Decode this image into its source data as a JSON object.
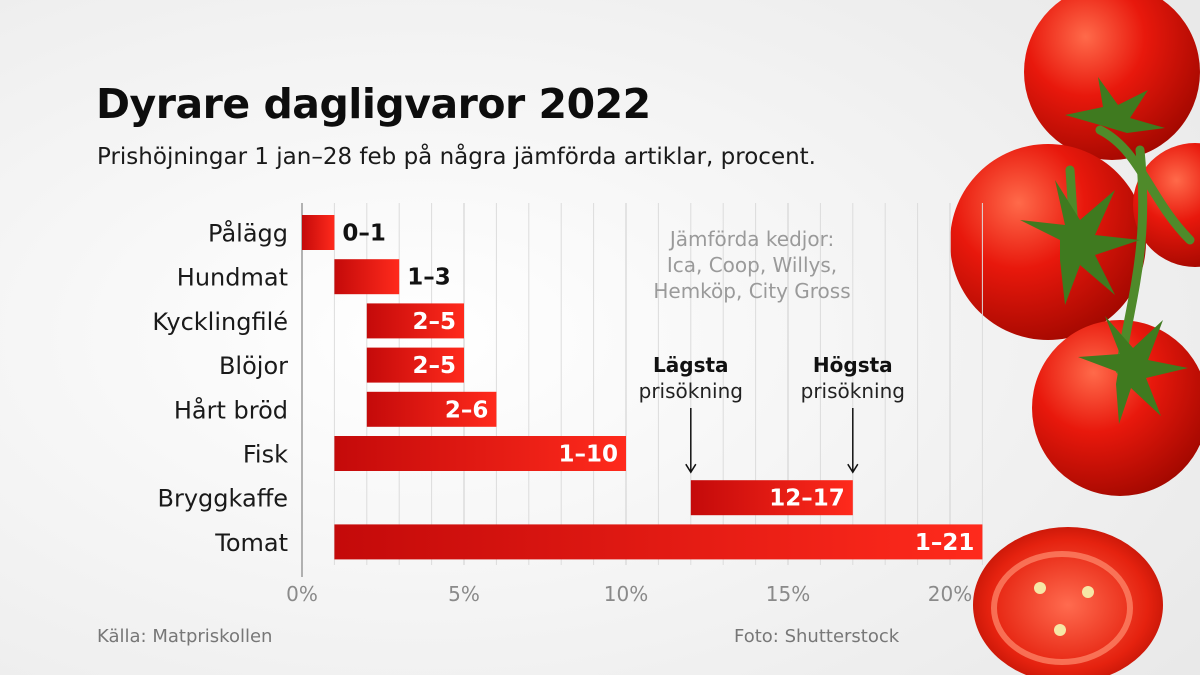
{
  "title": "Dyrare dagligvaror 2022",
  "subtitle": "Prishöjningar 1 jan–28 feb på några jämförda artiklar, procent.",
  "source": "Källa: Matpriskollen",
  "photo_credit": "Foto: Shutterstock",
  "colors": {
    "bar_left": "#c40a0a",
    "bar_right": "#ff2a1c",
    "grid": "#dcdcdc",
    "tomato": "#e3150d"
  },
  "icons": [
    "tomato-photo"
  ],
  "chart_data": {
    "type": "bar",
    "orientation": "horizontal",
    "style": "range",
    "title": "Dyrare dagligvaror 2022",
    "subtitle": "Prishöjningar 1 jan–28 feb på några jämförda artiklar, procent.",
    "xlabel": "",
    "ylabel": "",
    "xlim": [
      0,
      21
    ],
    "xticks": [
      0,
      5,
      10,
      15,
      20
    ],
    "xtick_labels": [
      "0%",
      "5%",
      "10%",
      "15%",
      "20%"
    ],
    "grid": true,
    "categories": [
      "Pålägg",
      "Hundmat",
      "Kycklingfilé",
      "Blöjor",
      "Hårt bröd",
      "Fisk",
      "Bryggkaffe",
      "Tomat"
    ],
    "ranges": [
      [
        0,
        1
      ],
      [
        1,
        3
      ],
      [
        2,
        5
      ],
      [
        2,
        5
      ],
      [
        2,
        6
      ],
      [
        1,
        10
      ],
      [
        12,
        17
      ],
      [
        1,
        21
      ]
    ],
    "labels": [
      "0–1",
      "1–3",
      "2–5",
      "2–5",
      "2–6",
      "1–10",
      "12–17",
      "1–21"
    ],
    "note_lines": [
      "Jämförda kedjor:",
      "Ica, Coop, Willys,",
      "Hemköp, City Gross"
    ],
    "annotations": [
      {
        "bold": "Lägsta",
        "text": "prisökning",
        "x": 12,
        "target": "Bryggkaffe"
      },
      {
        "bold": "Högsta",
        "text": "prisökning",
        "x": 17,
        "target": "Bryggkaffe"
      }
    ]
  }
}
